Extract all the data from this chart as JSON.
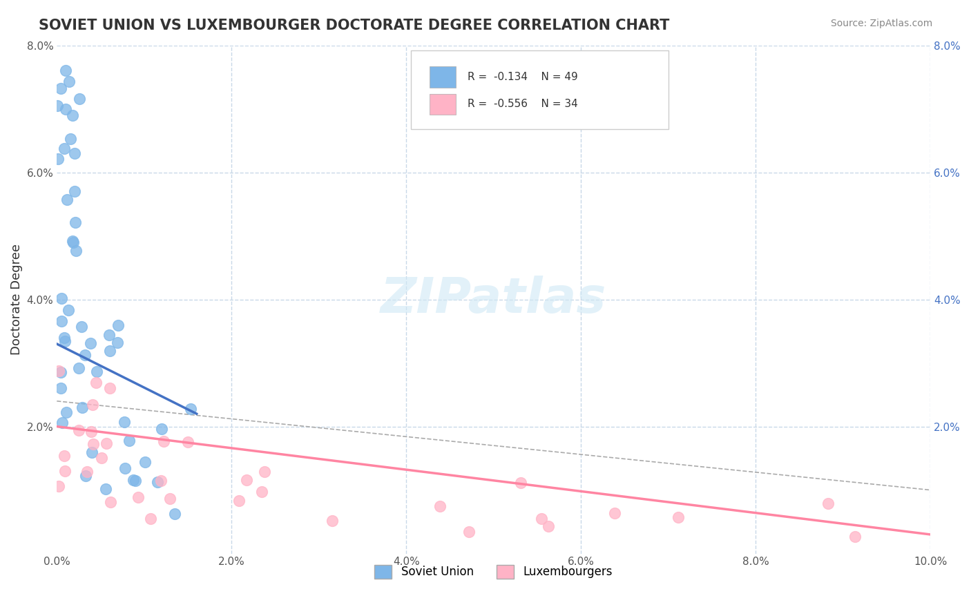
{
  "title": "SOVIET UNION VS LUXEMBOURGER DOCTORATE DEGREE CORRELATION CHART",
  "source": "Source: ZipAtlas.com",
  "xlabel": "",
  "ylabel": "Doctorate Degree",
  "xlim": [
    0.0,
    0.1
  ],
  "ylim": [
    0.0,
    0.08
  ],
  "xtick_labels": [
    "0.0%",
    "2.0%",
    "4.0%",
    "6.0%",
    "8.0%",
    "10.0%"
  ],
  "ytick_labels": [
    "",
    "2.0%",
    "4.0%",
    "6.0%",
    "8.0%"
  ],
  "background_color": "#ffffff",
  "grid_color": "#c8d8e8",
  "soviet_color": "#7EB6E8",
  "luxembourger_color": "#FFB3C6",
  "soviet_line_color": "#4472C4",
  "luxembourger_line_color": "#FF85A2",
  "dash_line_color": "#AAAAAA",
  "right_tick_color": "#4472C4",
  "soviet_R": "-0.134",
  "soviet_N": "49",
  "luxembourger_R": "-0.556",
  "luxembourger_N": "34",
  "watermark_color": "#D0E8F5",
  "title_color": "#333333",
  "source_color": "#888888",
  "tick_color": "#555555"
}
